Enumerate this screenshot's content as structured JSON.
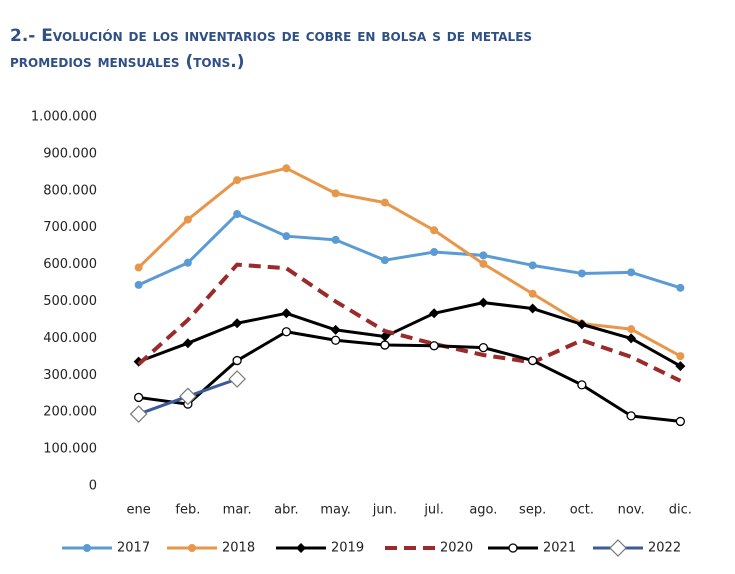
{
  "chart_data": {
    "type": "line",
    "title": "2.- Evolución de los inventarios de cobre en bolsa s de metales",
    "subtitle": "promedios mensuales (tons.)",
    "categories": [
      "ene",
      "feb.",
      "mar.",
      "abr.",
      "may.",
      "jun.",
      "jul.",
      "ago.",
      "sep.",
      "oct.",
      "nov.",
      "dic."
    ],
    "ylim": [
      0,
      1000000
    ],
    "yticks": [
      0,
      {
        "value": 100000,
        "label": "100.000"
      },
      {
        "value": 200000,
        "label": "200.000"
      },
      {
        "value": 300000,
        "label": "300.000"
      },
      {
        "value": 400000,
        "label": "400.000"
      },
      {
        "value": 500000,
        "label": "500.000"
      },
      {
        "value": 600000,
        "label": "600.000"
      },
      {
        "value": 700000,
        "label": "700.000"
      },
      {
        "value": 800000,
        "label": "800.000"
      },
      {
        "value": 900000,
        "label": "900.000"
      },
      {
        "value": 1000000,
        "label": "1.000.000"
      }
    ],
    "grid": false,
    "legend": "bottom",
    "series": [
      {
        "name": "2017",
        "color": "#5b9bd5",
        "marker": "circle",
        "dashed": false,
        "values": [
          545000,
          605000,
          737000,
          677000,
          667000,
          612000,
          634000,
          625000,
          598000,
          576000,
          579000,
          537000
        ]
      },
      {
        "name": "2018",
        "color": "#e8964a",
        "marker": "circle",
        "dashed": false,
        "values": [
          592000,
          722000,
          829000,
          861000,
          793000,
          768000,
          693000,
          602000,
          521000,
          440000,
          425000,
          352000
        ]
      },
      {
        "name": "2019",
        "color": "#000000",
        "marker": "diamond",
        "dashed": false,
        "values": [
          337000,
          387000,
          441000,
          468000,
          423000,
          405000,
          468000,
          497000,
          481000,
          438000,
          400000,
          325000
        ]
      },
      {
        "name": "2020",
        "color": "#9b2a2a",
        "marker": "none",
        "dashed": true,
        "values": [
          330000,
          450000,
          600000,
          590000,
          500000,
          420000,
          385000,
          355000,
          335000,
          395000,
          350000,
          285000
        ]
      },
      {
        "name": "2021",
        "color": "#000000",
        "marker": "open-circle",
        "dashed": false,
        "values": [
          240000,
          222000,
          340000,
          418000,
          395000,
          382000,
          380000,
          375000,
          340000,
          274000,
          190000,
          175000
        ]
      },
      {
        "name": "2022",
        "color": "#3c5a99",
        "marker": "open-diamond",
        "dashed": false,
        "values": [
          195000,
          243000,
          290000,
          null,
          null,
          null,
          null,
          null,
          null,
          null,
          null,
          null
        ]
      }
    ]
  }
}
